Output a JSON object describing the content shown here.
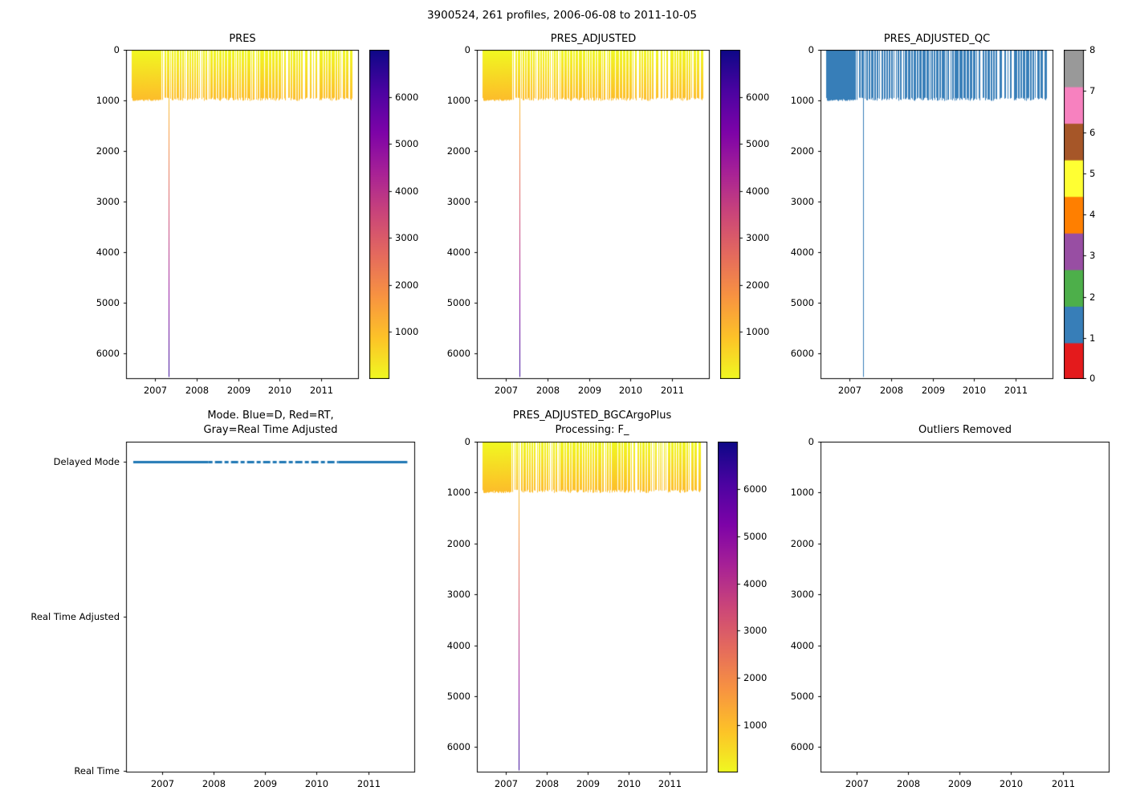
{
  "figure": {
    "title": "3900524, 261 profiles, 2006-06-08 to 2011-10-05"
  },
  "chart_data": [
    {
      "id": "pres",
      "type": "profile-lines",
      "title": "PRES",
      "xlim": [
        2006.3,
        2011.91
      ],
      "xticks": [
        2007,
        2008,
        2009,
        2010,
        2011
      ],
      "ylim": [
        0,
        6500
      ],
      "y_inverted": true,
      "yticks": [
        0,
        1000,
        2000,
        3000,
        4000,
        5000,
        6000
      ],
      "profiles": {
        "count": 261,
        "time_start": 2006.44,
        "time_end": 2011.76,
        "typical_max_pressure_dbar": [
          950,
          1010
        ],
        "deep_profile_time": 2007.32,
        "deep_profile_pressure_dbar": 6460,
        "color_by": "pressure",
        "colormap": "plasma_r"
      },
      "colorbar": {
        "type": "continuous",
        "vmin": 0,
        "vmax": 7000,
        "ticks": [
          1000,
          2000,
          3000,
          4000,
          5000,
          6000
        ]
      }
    },
    {
      "id": "pres-adjusted",
      "type": "profile-lines",
      "title": "PRES_ADJUSTED",
      "xlim": [
        2006.3,
        2011.91
      ],
      "xticks": [
        2007,
        2008,
        2009,
        2010,
        2011
      ],
      "ylim": [
        0,
        6500
      ],
      "y_inverted": true,
      "yticks": [
        0,
        1000,
        2000,
        3000,
        4000,
        5000,
        6000
      ],
      "profiles": {
        "count": 261,
        "time_start": 2006.44,
        "time_end": 2011.76,
        "typical_max_pressure_dbar": [
          950,
          1010
        ],
        "deep_profile_time": 2007.32,
        "deep_profile_pressure_dbar": 6460,
        "color_by": "pressure",
        "colormap": "plasma_r"
      },
      "colorbar": {
        "type": "continuous",
        "vmin": 0,
        "vmax": 7000,
        "ticks": [
          1000,
          2000,
          3000,
          4000,
          5000,
          6000
        ]
      }
    },
    {
      "id": "pres-adjusted-qc",
      "type": "profile-lines",
      "title": "PRES_ADJUSTED_QC",
      "xlim": [
        2006.3,
        2011.91
      ],
      "xticks": [
        2007,
        2008,
        2009,
        2010,
        2011
      ],
      "ylim": [
        0,
        6500
      ],
      "y_inverted": true,
      "yticks": [
        0,
        1000,
        2000,
        3000,
        4000,
        5000,
        6000
      ],
      "line_color": "#377eb8",
      "qc_value_shown": 1,
      "profiles": {
        "count": 261,
        "time_start": 2006.44,
        "time_end": 2011.76,
        "typical_max_pressure_dbar": [
          950,
          1010
        ],
        "deep_profile_time": 2007.32,
        "deep_profile_pressure_dbar": 6460
      },
      "colorbar": {
        "type": "discrete",
        "ticks": [
          0,
          1,
          2,
          3,
          4,
          5,
          6,
          7,
          8
        ],
        "colors": [
          "#e41a1c",
          "#377eb8",
          "#4daf4a",
          "#984ea3",
          "#ff7f00",
          "#ffff33",
          "#a65628",
          "#f781bf",
          "#999999"
        ]
      }
    },
    {
      "id": "mode",
      "type": "category-line",
      "title": "Mode. Blue=D, Red=RT,\nGray=Real Time Adjusted",
      "xlim": [
        2006.3,
        2011.91
      ],
      "xticks": [
        2007,
        2008,
        2009,
        2010,
        2011
      ],
      "categories": [
        "Delayed Mode",
        "Real Time Adjusted",
        "Real Time"
      ],
      "line": {
        "category": "Delayed Mode",
        "color": "#1f77b4",
        "x_start": 2006.44,
        "x_end": 2011.76,
        "dashed_span": [
          2007.9,
          2010.42
        ]
      }
    },
    {
      "id": "bgc",
      "type": "profile-lines",
      "title": "PRES_ADJUSTED_BGCArgoPlus\nProcessing: F_",
      "xlim": [
        2006.3,
        2011.91
      ],
      "xticks": [
        2007,
        2008,
        2009,
        2010,
        2011
      ],
      "ylim": [
        0,
        6500
      ],
      "y_inverted": true,
      "yticks": [
        0,
        1000,
        2000,
        3000,
        4000,
        5000,
        6000
      ],
      "profiles": {
        "count": 261,
        "time_start": 2006.44,
        "time_end": 2011.76,
        "typical_max_pressure_dbar": [
          950,
          1010
        ],
        "deep_profile_time": 2007.32,
        "deep_profile_pressure_dbar": 6460,
        "color_by": "pressure",
        "colormap": "plasma_r"
      },
      "colorbar": {
        "type": "continuous",
        "vmin": 0,
        "vmax": 7000,
        "ticks": [
          1000,
          2000,
          3000,
          4000,
          5000,
          6000
        ]
      }
    },
    {
      "id": "outliers",
      "type": "empty",
      "title": "Outliers Removed",
      "xlim": [
        2006.3,
        2011.91
      ],
      "xticks": [
        2007,
        2008,
        2009,
        2010,
        2011
      ],
      "ylim": [
        0,
        6500
      ],
      "y_inverted": true,
      "yticks": [
        0,
        1000,
        2000,
        3000,
        4000,
        5000,
        6000
      ]
    }
  ]
}
